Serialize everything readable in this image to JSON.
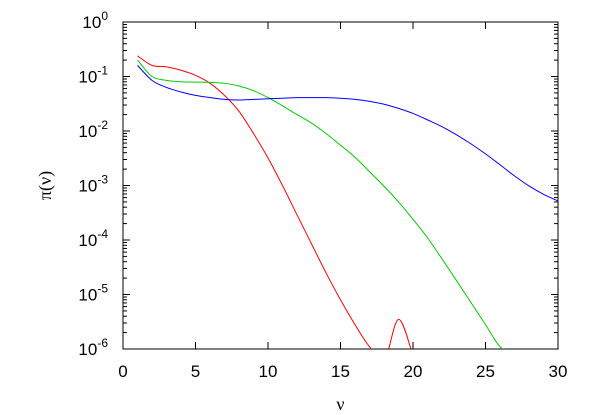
{
  "chart_data": {
    "type": "line",
    "title": "",
    "xlabel": "ν",
    "ylabel": "π(ν)",
    "xlim": [
      0,
      30
    ],
    "ylim": [
      1e-06,
      1
    ],
    "yscale": "log",
    "grid": false,
    "legend": "none",
    "x_ticks": [
      "0",
      "5",
      "10",
      "15",
      "20",
      "25",
      "30"
    ],
    "y_ticks": [
      {
        "base": "10",
        "exp": "0"
      },
      {
        "base": "10",
        "exp": "-1"
      },
      {
        "base": "10",
        "exp": "-2"
      },
      {
        "base": "10",
        "exp": "-3"
      },
      {
        "base": "10",
        "exp": "-4"
      },
      {
        "base": "10",
        "exp": "-5"
      },
      {
        "base": "10",
        "exp": "-6"
      }
    ],
    "series": [
      {
        "color": "#ff0000",
        "x": [
          1,
          2,
          3,
          4,
          5,
          6,
          7,
          8,
          9,
          10,
          11,
          12,
          13,
          14,
          15,
          16,
          17,
          18,
          19,
          20
        ],
        "y": [
          0.24,
          0.16,
          0.15,
          0.13,
          0.105,
          0.075,
          0.045,
          0.023,
          0.009,
          0.0032,
          0.001,
          0.00029,
          8.5e-05,
          2.5e-05,
          8e-06,
          2.8e-06,
          1.1e-06,
          6e-07,
          3.5e-06,
          7.5e-07
        ]
      },
      {
        "color": "#00cc00",
        "x": [
          1,
          2,
          3,
          4,
          5,
          6,
          7,
          8,
          9,
          10,
          11,
          12,
          13,
          14,
          15,
          16,
          17,
          18,
          19,
          20,
          21,
          22,
          23,
          24,
          25,
          26,
          27
        ],
        "y": [
          0.2,
          0.1,
          0.085,
          0.08,
          0.079,
          0.078,
          0.075,
          0.067,
          0.055,
          0.041,
          0.029,
          0.02,
          0.014,
          0.009,
          0.0055,
          0.0033,
          0.0018,
          0.00097,
          0.0005,
          0.00024,
          0.00011,
          4.5e-05,
          1.8e-05,
          7.1e-06,
          2.8e-06,
          1.1e-06,
          7.5e-07
        ]
      },
      {
        "color": "#0000ff",
        "x": [
          1,
          2,
          3,
          4,
          5,
          6,
          7,
          8,
          9,
          10,
          11,
          12,
          13,
          14,
          15,
          16,
          17,
          18,
          19,
          20,
          21,
          22,
          23,
          24,
          25,
          26,
          27,
          28,
          29,
          30
        ],
        "y": [
          0.16,
          0.085,
          0.063,
          0.052,
          0.045,
          0.041,
          0.038,
          0.037,
          0.038,
          0.039,
          0.04,
          0.041,
          0.041,
          0.041,
          0.04,
          0.038,
          0.035,
          0.031,
          0.026,
          0.021,
          0.016,
          0.012,
          0.0085,
          0.0058,
          0.0038,
          0.0024,
          0.0015,
          0.00098,
          0.00069,
          0.00052
        ]
      }
    ]
  }
}
